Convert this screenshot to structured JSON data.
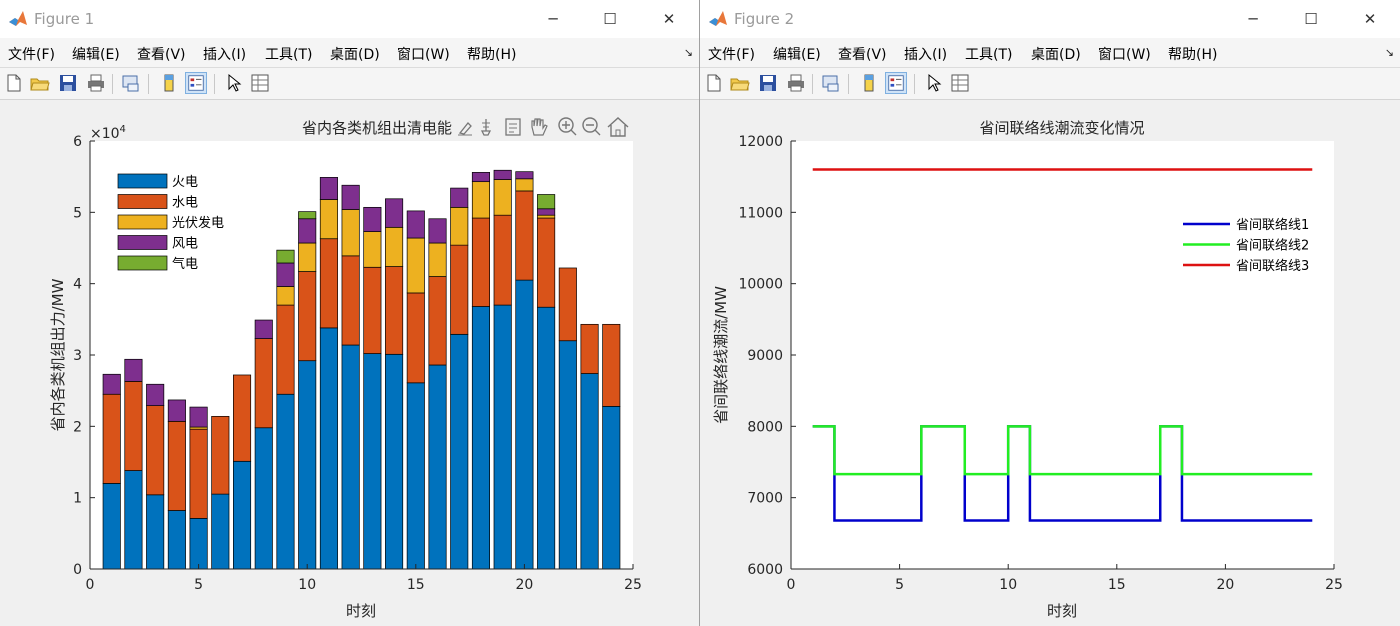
{
  "windows": [
    {
      "title": "Figure 1",
      "menu": [
        "文件(F)",
        "编辑(E)",
        "查看(V)",
        "插入(I)",
        "工具(T)",
        "桌面(D)",
        "窗口(W)",
        "帮助(H)"
      ]
    },
    {
      "title": "Figure 2",
      "menu": [
        "文件(F)",
        "编辑(E)",
        "查看(V)",
        "插入(I)",
        "工具(T)",
        "桌面(D)",
        "窗口(W)",
        "帮助(H)"
      ]
    }
  ],
  "window_controls": {
    "minimize": "─",
    "maximize": "☐",
    "close": "✕"
  },
  "toolbar_icons": [
    "new-figure-icon",
    "open-file-icon",
    "save-icon",
    "print-icon",
    "link-plot-icon",
    "colorbar-icon",
    "legend-icon",
    "pointer-icon",
    "property-inspector-icon"
  ],
  "axes_toolbar_icons": [
    "brush-icon",
    "data-tips-icon",
    "export-icon",
    "pan-icon",
    "zoom-in-icon",
    "zoom-out-icon",
    "home-icon"
  ],
  "chart_data": [
    {
      "type": "bar",
      "stacked": true,
      "title": "省内各类机组出清电能",
      "xlabel": "时刻",
      "ylabel": "省内各类机组出力/MW",
      "exponent_label": "×10",
      "exponent": "4",
      "xlim": [
        0,
        25
      ],
      "ylim": [
        0,
        60000
      ],
      "xticks": [
        "0",
        "5",
        "10",
        "15",
        "20",
        "25"
      ],
      "yticks": [
        "0",
        "1",
        "2",
        "3",
        "4",
        "5",
        "6"
      ],
      "x": [
        1,
        2,
        3,
        4,
        5,
        6,
        7,
        8,
        9,
        10,
        11,
        12,
        13,
        14,
        15,
        16,
        17,
        18,
        19,
        20,
        21,
        22,
        23,
        24
      ],
      "legend_position": "top-left",
      "series": [
        {
          "name": "火电",
          "color": "#0072BD",
          "values": [
            12000,
            13800,
            10400,
            8200,
            7100,
            10500,
            15100,
            19800,
            24500,
            29200,
            33800,
            31400,
            30200,
            30100,
            26100,
            28600,
            32900,
            36800,
            37000,
            40500,
            36700,
            32000,
            27400,
            22800
          ]
        },
        {
          "name": "水电",
          "color": "#D95319",
          "values": [
            12500,
            12500,
            12500,
            12500,
            12500,
            10900,
            12100,
            12500,
            12500,
            12500,
            12500,
            12500,
            12100,
            12300,
            12600,
            12400,
            12500,
            12400,
            12600,
            12500,
            12500,
            10200,
            6900,
            11500
          ]
        },
        {
          "name": "光伏发电",
          "color": "#EDB120",
          "values": [
            0,
            0,
            0,
            0,
            300,
            0,
            0,
            0,
            2600,
            4000,
            5500,
            6500,
            5000,
            5500,
            7700,
            4700,
            5300,
            5100,
            5000,
            1700,
            400,
            0,
            0,
            0
          ]
        },
        {
          "name": "风电",
          "color": "#7E2F8E",
          "values": [
            2800,
            3100,
            3000,
            3000,
            2800,
            0,
            0,
            2600,
            3300,
            3400,
            3100,
            3400,
            3400,
            4000,
            3800,
            3400,
            2700,
            1300,
            1300,
            1000,
            900,
            0,
            0,
            0
          ]
        },
        {
          "name": "气电",
          "color": "#77AC30",
          "values": [
            0,
            0,
            0,
            0,
            0,
            0,
            0,
            0,
            1800,
            1000,
            0,
            0,
            0,
            0,
            0,
            0,
            0,
            0,
            0,
            0,
            2000,
            0,
            0,
            0
          ]
        }
      ]
    },
    {
      "type": "line",
      "step": true,
      "title": "省间联络线潮流变化情况",
      "xlabel": "时刻",
      "ylabel": "省间联络线潮流/MW",
      "xlim": [
        0,
        25
      ],
      "ylim": [
        6000,
        12000
      ],
      "xticks": [
        "0",
        "5",
        "10",
        "15",
        "20",
        "25"
      ],
      "yticks": [
        "6000",
        "7000",
        "8000",
        "9000",
        "10000",
        "11000",
        "12000"
      ],
      "x": [
        1,
        2,
        3,
        4,
        5,
        6,
        7,
        8,
        9,
        10,
        11,
        12,
        13,
        14,
        15,
        16,
        17,
        18,
        19,
        20,
        21,
        22,
        23,
        24
      ],
      "legend_position": "right",
      "series": [
        {
          "name": "省间联络线1",
          "color": "#0000CC",
          "values": [
            8000,
            6680,
            6680,
            6680,
            6680,
            8000,
            8000,
            6680,
            6680,
            8000,
            6680,
            6680,
            6680,
            6680,
            6680,
            6680,
            8000,
            6680,
            6680,
            6680,
            6680,
            6680,
            6680,
            6680
          ]
        },
        {
          "name": "省间联络线2",
          "color": "#22EE22",
          "values": [
            8000,
            7330,
            7330,
            7330,
            7330,
            8000,
            8000,
            7330,
            7330,
            8000,
            7330,
            7330,
            7330,
            7330,
            7330,
            7330,
            8000,
            7330,
            7330,
            7330,
            7330,
            7330,
            7330,
            7330
          ]
        },
        {
          "name": "省间联络线3",
          "color": "#DD1111",
          "values": [
            11600,
            11600,
            11600,
            11600,
            11600,
            11600,
            11600,
            11600,
            11600,
            11600,
            11600,
            11600,
            11600,
            11600,
            11600,
            11600,
            11600,
            11600,
            11600,
            11600,
            11600,
            11600,
            11600,
            11600
          ]
        }
      ]
    }
  ]
}
